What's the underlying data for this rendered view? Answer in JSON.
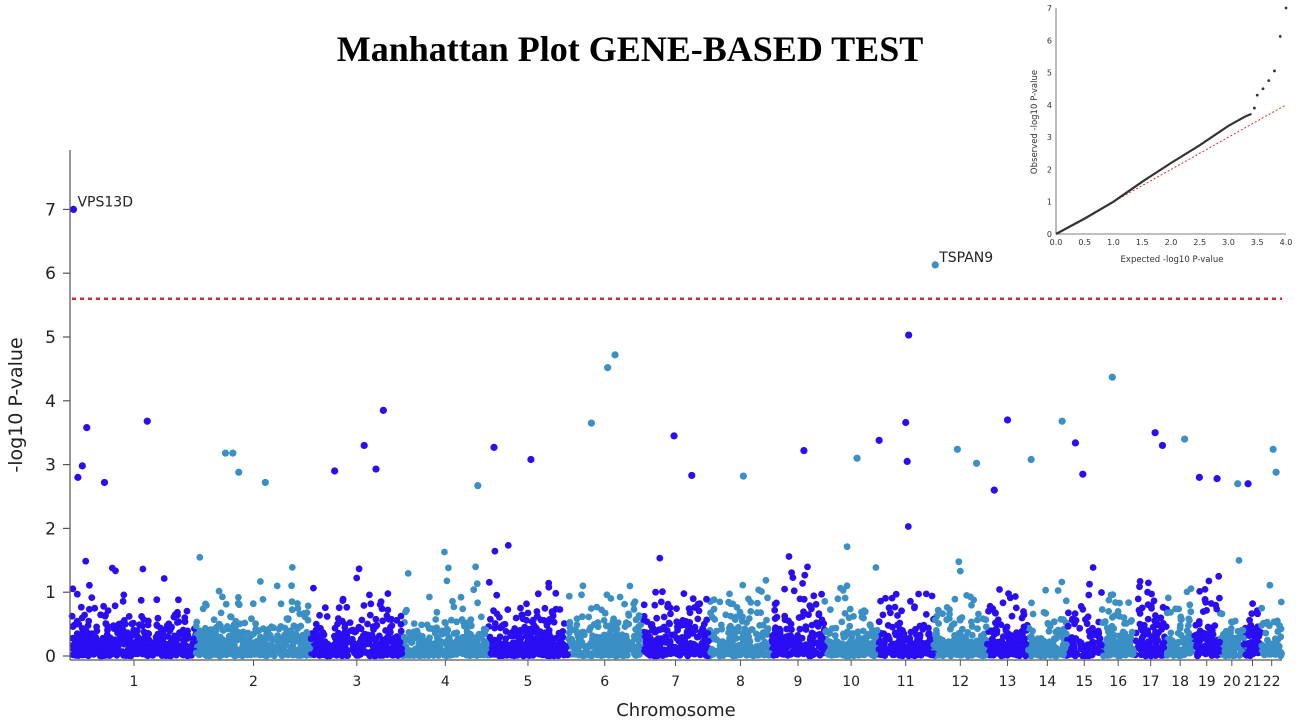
{
  "chart_data": [
    {
      "type": "scatter",
      "title": "Manhattan Plot GENE-BASED TEST",
      "xlabel": "Chromosome",
      "ylabel": "-log10 P-value",
      "ylim": [
        0,
        7.5
      ],
      "yticks": [
        0,
        1,
        2,
        3,
        4,
        5,
        6,
        7
      ],
      "grid": false,
      "colors": {
        "odd_chromosome": "#2a0df2",
        "even_chromosome": "#3a8fc4",
        "threshold": "#e0282f"
      },
      "chromosomes": [
        {
          "label": "1",
          "start": 0,
          "end": 84
        },
        {
          "label": "2",
          "start": 84,
          "end": 162
        },
        {
          "label": "3",
          "start": 162,
          "end": 224
        },
        {
          "label": "4",
          "start": 224,
          "end": 282
        },
        {
          "label": "5",
          "start": 282,
          "end": 336
        },
        {
          "label": "6",
          "start": 336,
          "end": 386
        },
        {
          "label": "7",
          "start": 386,
          "end": 432
        },
        {
          "label": "8",
          "start": 432,
          "end": 474
        },
        {
          "label": "9",
          "start": 474,
          "end": 510
        },
        {
          "label": "10",
          "start": 510,
          "end": 546
        },
        {
          "label": "11",
          "start": 546,
          "end": 584
        },
        {
          "label": "12",
          "start": 584,
          "end": 620
        },
        {
          "label": "13",
          "start": 620,
          "end": 648
        },
        {
          "label": "14",
          "start": 648,
          "end": 674
        },
        {
          "label": "15",
          "start": 674,
          "end": 698
        },
        {
          "label": "16",
          "start": 698,
          "end": 720
        },
        {
          "label": "17",
          "start": 720,
          "end": 742
        },
        {
          "label": "18",
          "start": 742,
          "end": 760
        },
        {
          "label": "19",
          "start": 760,
          "end": 778
        },
        {
          "label": "20",
          "start": 778,
          "end": 794
        },
        {
          "label": "21",
          "start": 794,
          "end": 806
        },
        {
          "label": "22",
          "start": 806,
          "end": 820
        }
      ],
      "threshold": 5.6,
      "annotations": [
        {
          "label": "VPS13D",
          "x": 1,
          "y": 7.0
        },
        {
          "label": "TSPAN9",
          "x": 585,
          "y": 6.13
        }
      ],
      "peaks": [
        {
          "x": 1,
          "y": 7.0
        },
        {
          "x": 585,
          "y": 6.13
        },
        {
          "x": 567,
          "y": 5.03
        },
        {
          "x": 368,
          "y": 4.72
        },
        {
          "x": 363,
          "y": 4.52
        },
        {
          "x": 705,
          "y": 4.37
        },
        {
          "x": 211,
          "y": 3.85
        },
        {
          "x": 634,
          "y": 3.7
        },
        {
          "x": 671,
          "y": 3.68
        },
        {
          "x": 51,
          "y": 3.68
        },
        {
          "x": 352,
          "y": 3.65
        },
        {
          "x": 565,
          "y": 3.66
        },
        {
          "x": 10,
          "y": 3.58
        },
        {
          "x": 734,
          "y": 3.5
        },
        {
          "x": 408,
          "y": 3.45
        },
        {
          "x": 754,
          "y": 3.4
        },
        {
          "x": 547,
          "y": 3.38
        },
        {
          "x": 680,
          "y": 3.34
        },
        {
          "x": 198,
          "y": 3.3
        },
        {
          "x": 739,
          "y": 3.3
        },
        {
          "x": 286,
          "y": 3.27
        },
        {
          "x": 600,
          "y": 3.24
        },
        {
          "x": 814,
          "y": 3.24
        },
        {
          "x": 496,
          "y": 3.22
        },
        {
          "x": 104,
          "y": 3.18
        },
        {
          "x": 109,
          "y": 3.18
        },
        {
          "x": 311,
          "y": 3.08
        },
        {
          "x": 532,
          "y": 3.1
        },
        {
          "x": 650,
          "y": 3.08
        },
        {
          "x": 566,
          "y": 3.05
        },
        {
          "x": 613,
          "y": 3.02
        },
        {
          "x": 7,
          "y": 2.98
        },
        {
          "x": 206,
          "y": 2.93
        },
        {
          "x": 178,
          "y": 2.9
        },
        {
          "x": 113,
          "y": 2.88
        },
        {
          "x": 764,
          "y": 2.8
        },
        {
          "x": 455,
          "y": 2.82
        },
        {
          "x": 776,
          "y": 2.78
        },
        {
          "x": 685,
          "y": 2.85
        },
        {
          "x": 4,
          "y": 2.8
        },
        {
          "x": 22,
          "y": 2.72
        },
        {
          "x": 131,
          "y": 2.72
        },
        {
          "x": 420,
          "y": 2.83
        },
        {
          "x": 275,
          "y": 2.67
        },
        {
          "x": 625,
          "y": 2.6
        },
        {
          "x": 790,
          "y": 2.7
        },
        {
          "x": 797,
          "y": 2.7
        },
        {
          "x": 816,
          "y": 2.88
        }
      ],
      "background_count": 4200,
      "background_max": 1.75
    },
    {
      "type": "line",
      "title": "",
      "xlabel": "Expected -log10 P-value",
      "ylabel": "Observed -log10 P-value",
      "xlim": [
        0,
        4.0
      ],
      "ylim": [
        0,
        7
      ],
      "xticks": [
        "0.0",
        "0.5",
        "1.0",
        "1.5",
        "2.0",
        "2.5",
        "3.0",
        "3.5",
        "4.0"
      ],
      "yticks": [
        "0",
        "1",
        "2",
        "3",
        "4",
        "5",
        "6",
        "7"
      ],
      "observed_curve": [
        [
          0,
          0
        ],
        [
          0.5,
          0.48
        ],
        [
          1.0,
          1.0
        ],
        [
          1.5,
          1.62
        ],
        [
          2.0,
          2.2
        ],
        [
          2.5,
          2.75
        ],
        [
          3.0,
          3.35
        ],
        [
          3.3,
          3.65
        ],
        [
          3.4,
          3.72
        ]
      ],
      "tail_points": [
        [
          3.45,
          3.9
        ],
        [
          3.5,
          4.3
        ],
        [
          3.6,
          4.5
        ],
        [
          3.7,
          4.75
        ],
        [
          3.8,
          5.05
        ],
        [
          3.9,
          6.12
        ],
        [
          4.0,
          7.0
        ]
      ],
      "reference_line": [
        [
          0,
          0
        ],
        [
          4.0,
          4.0
        ]
      ]
    }
  ]
}
